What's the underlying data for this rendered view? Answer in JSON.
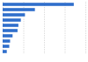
{
  "chart_data": {
    "type": "bar",
    "orientation": "horizontal",
    "categories": [
      null,
      null,
      null,
      null,
      null,
      null,
      null,
      null,
      null,
      null
    ],
    "values": [
      86,
      39,
      27,
      22,
      19,
      18,
      12,
      9,
      8,
      5
    ],
    "color": "#2f6ecb",
    "ylim": [
      0,
      100
    ],
    "yticks": [
      0,
      25,
      50,
      75,
      100
    ],
    "grid": true,
    "tick_labels": false
  }
}
